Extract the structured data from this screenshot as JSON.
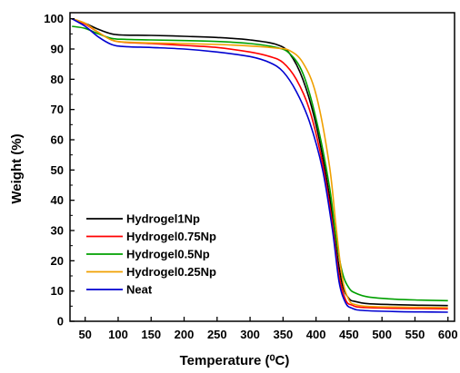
{
  "chart_data": {
    "type": "line",
    "xlabel": "Temperature (⁰C)",
    "ylabel": "Weight (%)",
    "xlim": [
      27,
      610
    ],
    "ylim": [
      0,
      102
    ],
    "x_ticks": [
      50,
      100,
      150,
      200,
      250,
      300,
      350,
      400,
      450,
      500,
      550,
      600
    ],
    "y_ticks": [
      0,
      10,
      20,
      30,
      40,
      50,
      60,
      70,
      80,
      90,
      100
    ],
    "grid": false,
    "legend_position": "bottom-left",
    "series": [
      {
        "name": "Hydrogel1Np",
        "color": "#000000",
        "x": [
          30,
          50,
          70,
          90,
          110,
          150,
          200,
          250,
          300,
          340,
          360,
          380,
          400,
          420,
          430,
          440,
          450,
          460,
          480,
          520,
          560,
          600
        ],
        "y": [
          100,
          98.5,
          96.5,
          95,
          94.6,
          94.5,
          94.2,
          93.8,
          93,
          91.5,
          88.5,
          80,
          65,
          42,
          25,
          12,
          7.5,
          6.5,
          5.8,
          5.5,
          5.3,
          5.2
        ]
      },
      {
        "name": "Hydrogel0.75Np",
        "color": "#ff0000",
        "x": [
          30,
          50,
          70,
          90,
          110,
          150,
          200,
          250,
          300,
          330,
          350,
          370,
          390,
          410,
          425,
          435,
          445,
          455,
          470,
          520,
          560,
          600
        ],
        "y": [
          100,
          98.2,
          95.5,
          93,
          92.2,
          91.8,
          91.2,
          90.5,
          89,
          87.5,
          85.5,
          80,
          70,
          52,
          32,
          15,
          7,
          5.3,
          4.6,
          4.3,
          4.2,
          4.1
        ]
      },
      {
        "name": "Hydrogel0.5Np",
        "color": "#00a000",
        "x": [
          30,
          50,
          70,
          90,
          110,
          150,
          200,
          250,
          300,
          340,
          360,
          380,
          400,
          420,
          430,
          440,
          450,
          460,
          480,
          520,
          560,
          600
        ],
        "y": [
          97.5,
          96.8,
          95,
          93.5,
          93.2,
          93,
          92.8,
          92.5,
          91.8,
          90.5,
          88.5,
          82,
          67,
          45,
          28,
          16,
          11,
          9.3,
          8,
          7.3,
          7,
          6.8
        ]
      },
      {
        "name": "Hydrogel0.25Np",
        "color": "#f0a000",
        "x": [
          30,
          50,
          70,
          90,
          110,
          150,
          200,
          250,
          300,
          340,
          360,
          380,
          400,
          420,
          430,
          440,
          450,
          460,
          480,
          520,
          560,
          600
        ],
        "y": [
          100,
          98.5,
          95.5,
          93,
          92.3,
          92,
          91.8,
          91.5,
          91,
          90.3,
          89.5,
          85.5,
          75,
          52,
          32,
          14,
          7,
          5.5,
          4.9,
          4.7,
          4.6,
          4.5
        ]
      },
      {
        "name": "Neat",
        "color": "#0000d0",
        "x": [
          30,
          50,
          70,
          90,
          110,
          150,
          200,
          250,
          300,
          330,
          350,
          370,
          390,
          410,
          425,
          435,
          445,
          455,
          470,
          520,
          560,
          600
        ],
        "y": [
          100,
          97.5,
          94,
          91.5,
          90.8,
          90.5,
          90,
          89,
          87.5,
          85.5,
          82.5,
          76,
          66,
          50,
          30,
          13,
          6,
          4.3,
          3.6,
          3.2,
          3.1,
          3
        ]
      }
    ]
  }
}
